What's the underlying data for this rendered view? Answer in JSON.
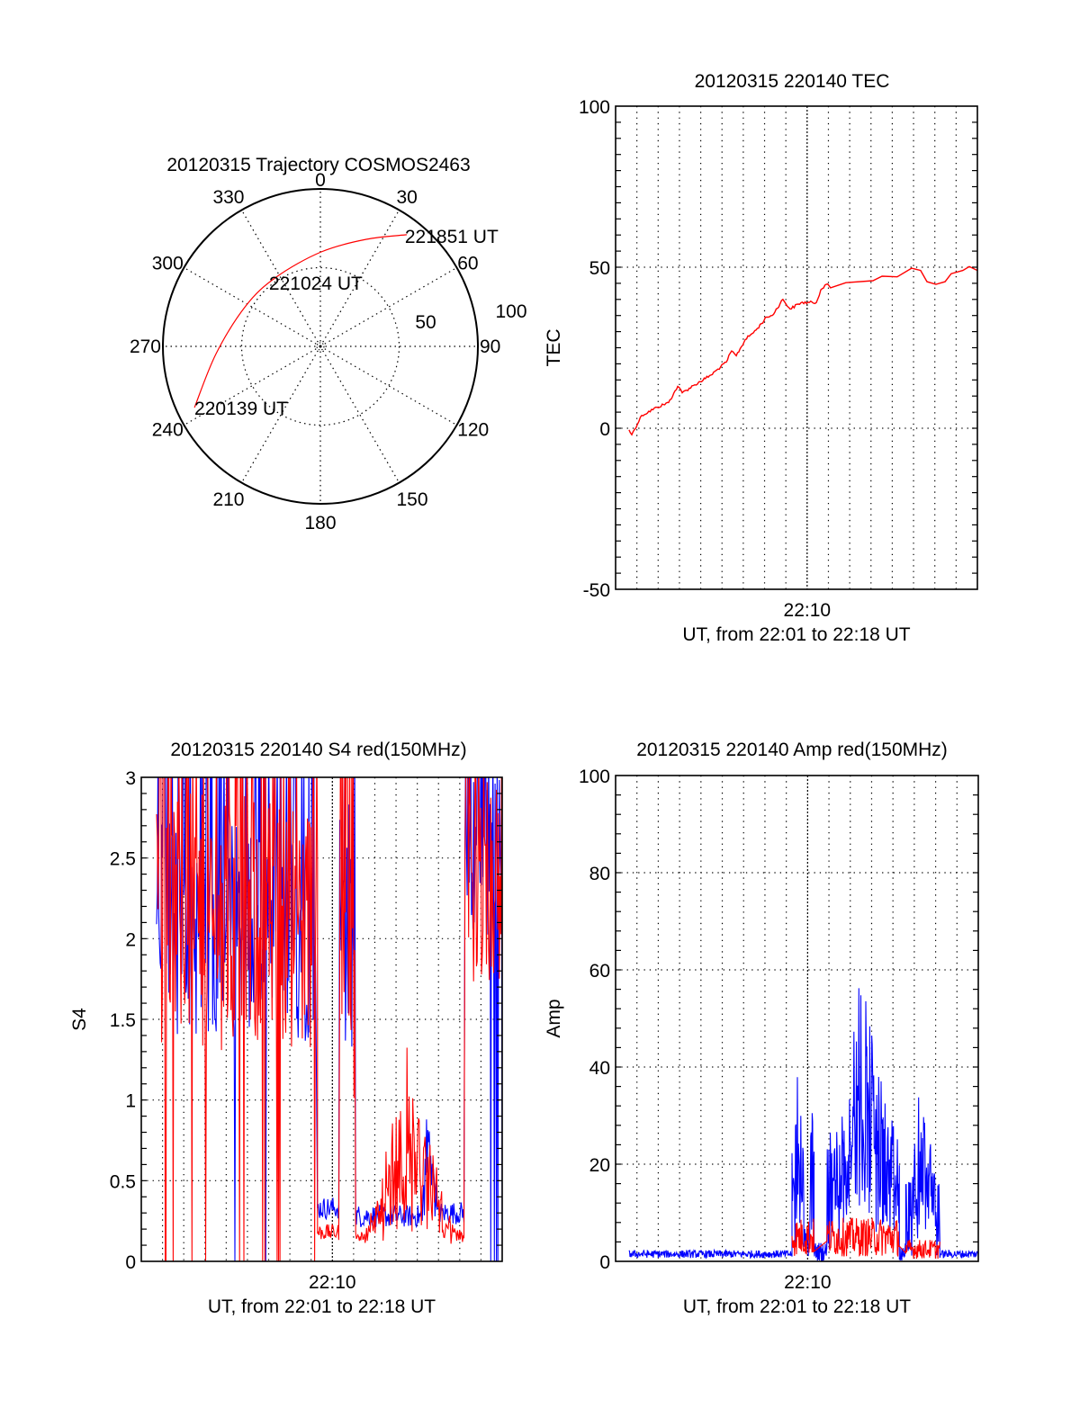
{
  "colors": {
    "red": "#ff0000",
    "blue": "#0000ff",
    "axis": "#000000",
    "grid": "#000000"
  },
  "chart_data": [
    {
      "type": "polar",
      "title": "20120315 Trajectory COSMOS2463",
      "angle_labels": [
        "0",
        "30",
        "60",
        "90",
        "120",
        "150",
        "180",
        "210",
        "240",
        "270",
        "300",
        "330"
      ],
      "angle_values": [
        0,
        30,
        60,
        90,
        120,
        150,
        180,
        210,
        240,
        270,
        300,
        330
      ],
      "radial_labels": [
        "50",
        "100"
      ],
      "radial_values": [
        50,
        100
      ],
      "rlim": [
        0,
        100
      ],
      "trajectory": {
        "color": "#ff0000",
        "azimuth": [
          244.1,
          266.0,
          298.5,
          327.5,
          0.5,
          23.2,
          37.7
        ],
        "radius": [
          88.9,
          66.4,
          53.9,
          52.2,
          60.0,
          74.0,
          89.6
        ]
      },
      "annotations": [
        {
          "text": "220139 UT",
          "azimuth": 244.1,
          "radius": 88.9
        },
        {
          "text": "221024 UT",
          "azimuth": 327.5,
          "radius": 52.2
        },
        {
          "text": "221851 UT",
          "azimuth": 37.7,
          "radius": 89.6
        }
      ]
    },
    {
      "type": "line",
      "title": "20120315 220140 TEC",
      "xlabel": "UT, from 22:01 to 22:18 UT",
      "ylabel": "TEC",
      "x_units": "minutes after 22:00 UT",
      "xlim": [
        1,
        18
      ],
      "ylim": [
        -50,
        100
      ],
      "yticks": [
        -50,
        0,
        50,
        100
      ],
      "ytick_labels": [
        "-50",
        "0",
        "50",
        "100"
      ],
      "xticks": [
        10
      ],
      "xtick_labels": [
        "22:10"
      ],
      "grid": true,
      "series": [
        {
          "name": "TEC",
          "color": "#ff0000",
          "x": [
            1.63,
            1.76,
            2.23,
            2.95,
            3.49,
            3.92,
            4.13,
            4.72,
            5.48,
            6.2,
            6.45,
            6.67,
            7.09,
            7.6,
            8.1,
            8.36,
            8.86,
            9.2,
            9.71,
            10.43,
            10.64,
            10.9,
            11.1,
            11.82,
            13.09,
            13.52,
            14.23,
            14.91,
            15.33,
            15.63,
            16.05,
            16.48,
            16.77,
            17.32,
            17.62,
            18.0
          ],
          "y": [
            -0.5,
            -2,
            4,
            6.5,
            8,
            13,
            11,
            13.5,
            16.5,
            20.5,
            24,
            22.5,
            27.5,
            30.5,
            34.5,
            35,
            40,
            37,
            39,
            39,
            43,
            44.7,
            43.6,
            45.2,
            45.8,
            47.2,
            47,
            49.7,
            49,
            45.5,
            44.7,
            45.5,
            48,
            49,
            50.2,
            49
          ]
        }
      ]
    },
    {
      "type": "line",
      "title": "20120315 220140 S4 red(150MHz)",
      "xlabel": "UT, from 22:01 to 22:18 UT",
      "ylabel": "S4",
      "x_units": "minutes after 22:00 UT",
      "xlim": [
        1,
        18
      ],
      "ylim": [
        0,
        3
      ],
      "yticks": [
        0,
        0.5,
        1,
        1.5,
        2,
        2.5,
        3
      ],
      "ytick_labels": [
        "0",
        "0.5",
        "1",
        "1.5",
        "2",
        "2.5",
        "3"
      ],
      "xticks": [
        10
      ],
      "xtick_labels": [
        "22:10"
      ],
      "grid": true,
      "series": [
        {
          "name": "S4 (blue)",
          "color": "#0000ff",
          "segments": [
            {
              "t0": 1.72,
              "t1": 9.2,
              "mean": 2.05,
              "spread": 0.7,
              "dropout_rate": 0.01
            },
            {
              "t0": 9.3,
              "t1": 10.3,
              "mean": 0.33,
              "spread": 0.07,
              "dropout_rate": 0
            },
            {
              "t0": 10.35,
              "t1": 11.05,
              "mean": 2.1,
              "spread": 0.8,
              "dropout_rate": 0
            },
            {
              "t0": 11.1,
              "t1": 14.2,
              "mean": 0.28,
              "spread": 0.07,
              "dropout_rate": 0
            },
            {
              "t0": 14.2,
              "t1": 14.9,
              "mean": 0.6,
              "spread": 0.25,
              "dropout_rate": 0,
              "peak": 1.02
            },
            {
              "t0": 14.9,
              "t1": 16.2,
              "mean": 0.3,
              "spread": 0.07,
              "dropout_rate": 0
            },
            {
              "t0": 16.25,
              "t1": 18.0,
              "mean": 2.6,
              "spread": 0.6,
              "dropout_rate": 0.08
            }
          ]
        },
        {
          "name": "S4 (red)",
          "color": "#ff0000",
          "segments": [
            {
              "t0": 1.72,
              "t1": 9.3,
              "mean": 2.1,
              "spread": 0.8,
              "dropout_rate": 0.06
            },
            {
              "t0": 9.3,
              "t1": 10.3,
              "mean": 0.18,
              "spread": 0.05,
              "dropout_rate": 0
            },
            {
              "t0": 10.35,
              "t1": 11.05,
              "mean": 1.6,
              "spread": 0.8,
              "dropout_rate": 0
            },
            {
              "t0": 11.1,
              "t1": 16.2,
              "mean": 0.2,
              "spread": 0.06,
              "dropout_rate": 0,
              "peak": 1.4
            },
            {
              "t0": 16.25,
              "t1": 18.0,
              "mean": 2.4,
              "spread": 0.7,
              "dropout_rate": 0.05
            }
          ]
        }
      ]
    },
    {
      "type": "line",
      "title": "20120315 220140 Amp red(150MHz)",
      "xlabel": "UT, from 22:01 to 22:18 UT",
      "ylabel": "Amp",
      "x_units": "minutes after 22:00 UT",
      "xlim": [
        1,
        18
      ],
      "ylim": [
        0,
        100
      ],
      "yticks": [
        0,
        20,
        40,
        60,
        80,
        100
      ],
      "ytick_labels": [
        "0",
        "20",
        "40",
        "60",
        "80",
        "100"
      ],
      "xticks": [
        10
      ],
      "xtick_labels": [
        "22:10"
      ],
      "grid": true,
      "series": [
        {
          "name": "Amp (blue)",
          "color": "#0000ff",
          "segments": [
            {
              "t0": 1.63,
              "t1": 9.27,
              "mean": 1.5,
              "spread": 0.8
            },
            {
              "t0": 9.27,
              "t1": 9.82,
              "mean": 18,
              "spread": 18,
              "peak": 37
            },
            {
              "t0": 9.82,
              "t1": 10.1,
              "mean": 4,
              "spread": 3
            },
            {
              "t0": 10.1,
              "t1": 10.3,
              "mean": 20,
              "spread": 18,
              "peak": 38
            },
            {
              "t0": 10.3,
              "t1": 10.9,
              "mean": 2,
              "spread": 2
            },
            {
              "t0": 10.9,
              "t1": 14.3,
              "mean": 22,
              "spread": 20,
              "peak": 51
            },
            {
              "t0": 14.3,
              "t1": 14.6,
              "mean": 2,
              "spread": 2
            },
            {
              "t0": 14.6,
              "t1": 16.2,
              "mean": 13,
              "spread": 13,
              "peak": 30
            },
            {
              "t0": 16.2,
              "t1": 18.0,
              "mean": 1.5,
              "spread": 0.8
            }
          ]
        },
        {
          "name": "Amp (red)",
          "color": "#ff0000",
          "segments": [
            {
              "t0": 9.27,
              "t1": 10.3,
              "mean": 5,
              "spread": 4
            },
            {
              "t0": 10.9,
              "t1": 14.3,
              "mean": 5,
              "spread": 4
            },
            {
              "t0": 14.6,
              "t1": 16.2,
              "mean": 2.5,
              "spread": 2
            }
          ]
        }
      ]
    }
  ]
}
